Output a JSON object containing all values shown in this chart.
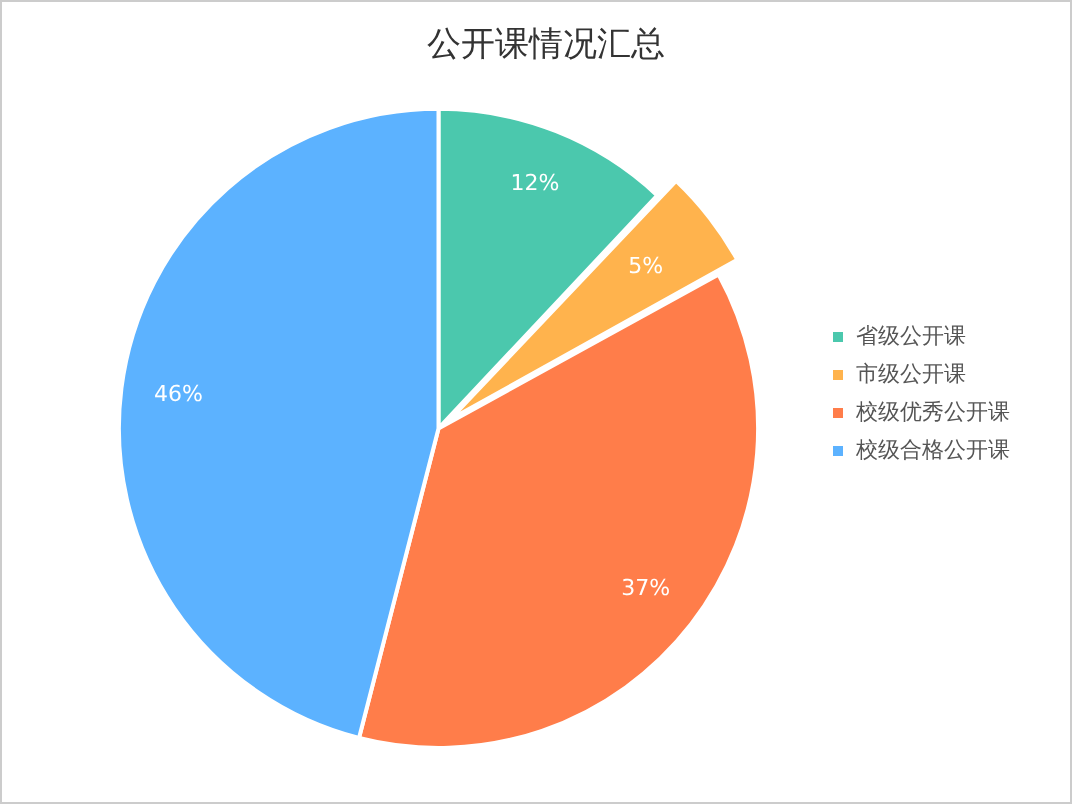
{
  "chart_data": {
    "type": "pie",
    "title": "公开课情况汇总",
    "categories": [
      "省级公开课",
      "市级公开课",
      "校级优秀公开课",
      "校级合格公开课"
    ],
    "values": [
      12,
      5,
      37,
      46
    ],
    "colors": [
      "#4bc8ad",
      "#ffb34d",
      "#ff7d4a",
      "#5cb2ff"
    ],
    "value_labels": [
      "12%",
      "5%",
      "37%",
      "46%"
    ],
    "legend": "right"
  }
}
